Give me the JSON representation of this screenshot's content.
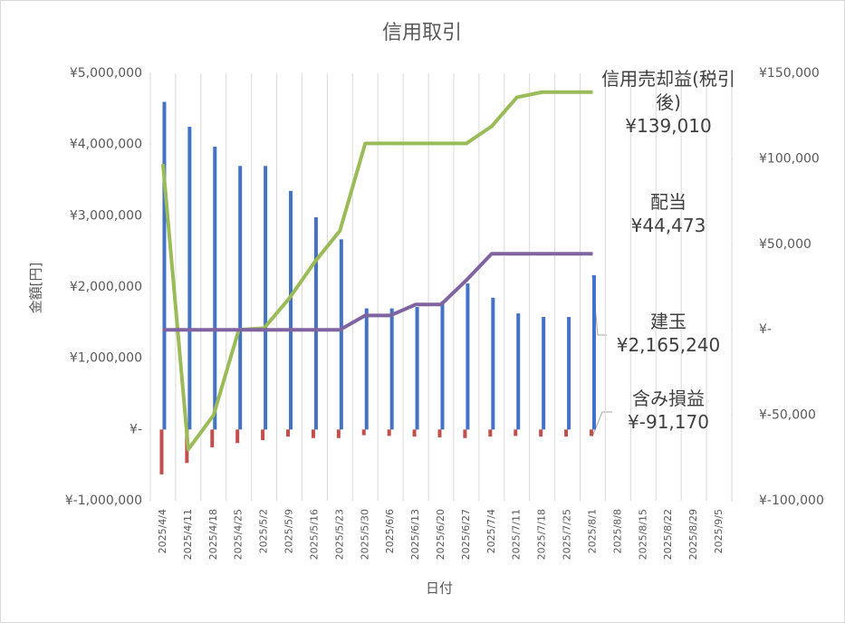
{
  "chart_data": {
    "type": "combo",
    "title": "信用取引",
    "ylabel": "金額[円]",
    "xlabel": "日付",
    "categories": [
      "2025/4/4",
      "2025/4/11",
      "2025/4/18",
      "2025/4/25",
      "2025/5/2",
      "2025/5/9",
      "2025/5/16",
      "2025/5/23",
      "2025/5/30",
      "2025/6/6",
      "2025/6/13",
      "2025/6/20",
      "2025/6/27",
      "2025/7/4",
      "2025/7/11",
      "2025/7/18",
      "2025/7/25",
      "2025/8/1",
      "2025/8/8",
      "2025/8/15",
      "2025/8/22",
      "2025/8/29",
      "2025/9/5"
    ],
    "ylim": [
      -1000000,
      5000000
    ],
    "yticks": [
      {
        "value": -1000000,
        "label": "¥-1,000,000"
      },
      {
        "value": 0,
        "label": "¥-"
      },
      {
        "value": 1000000,
        "label": "¥1,000,000"
      },
      {
        "value": 2000000,
        "label": "¥2,000,000"
      },
      {
        "value": 3000000,
        "label": "¥3,000,000"
      },
      {
        "value": 4000000,
        "label": "¥4,000,000"
      },
      {
        "value": 5000000,
        "label": "¥5,000,000"
      }
    ],
    "y2lim": [
      -100000,
      150000
    ],
    "y2ticks": [
      {
        "value": -100000,
        "label": "¥-100,000"
      },
      {
        "value": -50000,
        "label": "¥-50,000"
      },
      {
        "value": 0,
        "label": "¥-"
      },
      {
        "value": 50000,
        "label": "¥50,000"
      },
      {
        "value": 100000,
        "label": "¥100,000"
      },
      {
        "value": 150000,
        "label": "¥150,000"
      }
    ],
    "grid": "vertical",
    "series": [
      {
        "name": "建玉",
        "type": "bar",
        "color": "#4472c4",
        "values": [
          4600000,
          4250000,
          3970000,
          3700000,
          3700000,
          3350000,
          2980000,
          2670000,
          1700000,
          1700000,
          1720000,
          1800000,
          2050000,
          1850000,
          1630000,
          1580000,
          1580000,
          2165240,
          null,
          null,
          null,
          null,
          null
        ],
        "value_labels": [
          null,
          null,
          null,
          null,
          null,
          null,
          null,
          null,
          null,
          null,
          null,
          null,
          null,
          null,
          null,
          null,
          null,
          "¥2,165,240",
          null,
          null,
          null,
          null,
          null
        ]
      },
      {
        "name": "含み損益",
        "type": "bar",
        "color": "#c0504d",
        "values": [
          -630000,
          -470000,
          -250000,
          -190000,
          -150000,
          -100000,
          -120000,
          -120000,
          -80000,
          -90000,
          -100000,
          -110000,
          -120000,
          -100000,
          -90000,
          -100000,
          -100000,
          -91170,
          null,
          null,
          null,
          null,
          null
        ],
        "value_labels": [
          null,
          null,
          null,
          null,
          null,
          null,
          null,
          null,
          null,
          null,
          null,
          null,
          null,
          null,
          null,
          null,
          null,
          "¥-91,170",
          null,
          null,
          null,
          null,
          null
        ]
      },
      {
        "name": "信用売却益(税引後)",
        "type": "line",
        "axis": "y2",
        "color": "#9bbb59",
        "values": [
          97000,
          -70000,
          -50000,
          0,
          1000,
          18500,
          39600,
          58000,
          109000,
          109000,
          109000,
          109000,
          109000,
          119000,
          136000,
          139010,
          139010,
          139010,
          null,
          null,
          null,
          null,
          null
        ],
        "value_labels": [
          null,
          null,
          null,
          null,
          null,
          null,
          null,
          null,
          null,
          null,
          null,
          null,
          null,
          null,
          null,
          null,
          null,
          "¥139,010",
          null,
          null,
          null,
          null,
          null
        ]
      },
      {
        "name": "配当",
        "type": "line",
        "axis": "y2",
        "color": "#8064a2",
        "values": [
          0,
          0,
          0,
          0,
          0,
          0,
          0,
          0,
          8400,
          8400,
          14800,
          14800,
          29000,
          44473,
          44473,
          44473,
          44473,
          44473,
          null,
          null,
          null,
          null,
          null
        ],
        "value_labels": [
          null,
          null,
          null,
          null,
          null,
          null,
          null,
          null,
          null,
          null,
          null,
          null,
          null,
          null,
          null,
          null,
          null,
          "¥44,473",
          null,
          null,
          null,
          null,
          null
        ]
      }
    ]
  }
}
